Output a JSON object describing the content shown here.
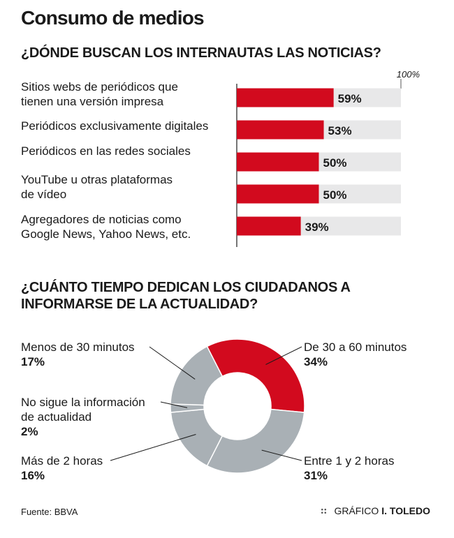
{
  "title": "Consumo de medios",
  "footer": {
    "source": "Fuente: BBVA",
    "credit_prefix": "GRÁFICO",
    "credit_name": "I. TOLEDO"
  },
  "colors": {
    "accent": "#d20a1e",
    "bar_bg": "#e8e8e9",
    "donut_gray": "#a9b0b5"
  },
  "chart_data": [
    {
      "type": "bar",
      "title": "¿DÓNDE BUSCAN LOS INTERNAUTAS LAS NOTICIAS?",
      "orientation": "horizontal",
      "max_label": "100%",
      "xlim": [
        0,
        100
      ],
      "categories": [
        [
          "Sitios webs de periódicos que",
          "tienen una versión impresa"
        ],
        [
          "Periódicos exclusivamente digitales"
        ],
        [
          "Periódicos en las redes sociales"
        ],
        [
          "YouTube u otras plataformas",
          "de vídeo"
        ],
        [
          "Agregadores de noticias como",
          "Google News, Yahoo News, etc."
        ]
      ],
      "values": [
        59,
        53,
        50,
        50,
        39
      ],
      "value_labels": [
        "59%",
        "53%",
        "50%",
        "50%",
        "39%"
      ]
    },
    {
      "type": "pie",
      "title": "¿CUÁNTO TIEMPO DEDICAN LOS CIUDADANOS A INFORMARSE DE LA ACTUALIDAD?",
      "donut": true,
      "slices": [
        {
          "label": [
            "De 30 a 60 minutos"
          ],
          "value": 34,
          "value_label": "34%",
          "color": "#d20a1e"
        },
        {
          "label": [
            "Entre 1 y 2 horas"
          ],
          "value": 31,
          "value_label": "31%",
          "color": "#a9b0b5"
        },
        {
          "label": [
            "Más de 2 horas"
          ],
          "value": 16,
          "value_label": "16%",
          "color": "#a9b0b5"
        },
        {
          "label": [
            "No sigue la información",
            "de actualidad"
          ],
          "value": 2,
          "value_label": "2%",
          "color": "#a9b0b5"
        },
        {
          "label": [
            "Menos de 30 minutos"
          ],
          "value": 17,
          "value_label": "17%",
          "color": "#a9b0b5"
        }
      ]
    }
  ]
}
